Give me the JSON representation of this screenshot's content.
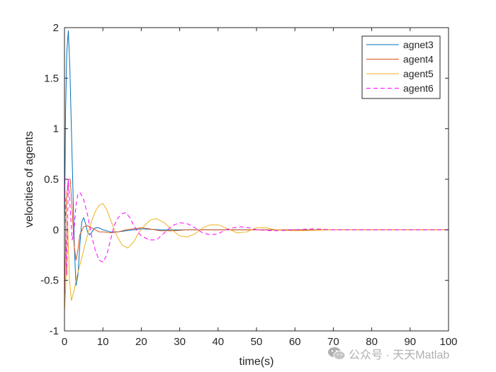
{
  "chart_data": {
    "type": "line",
    "title": "",
    "xlabel": "time(s)",
    "ylabel": "velocities of agents",
    "xlim": [
      0,
      100
    ],
    "ylim": [
      -1,
      2
    ],
    "xticks": [
      0,
      10,
      20,
      30,
      40,
      50,
      60,
      70,
      80,
      90,
      100
    ],
    "yticks": [
      -1,
      -0.5,
      0,
      0.5,
      1,
      1.5,
      2
    ],
    "xtick_labels": [
      "0",
      "10",
      "20",
      "30",
      "40",
      "50",
      "60",
      "70",
      "80",
      "90",
      "100"
    ],
    "ytick_labels": [
      "-1",
      "-0.5",
      "0",
      "0.5",
      "1",
      "1.5",
      "2"
    ],
    "grid": false,
    "legend_position": "top-right",
    "series": [
      {
        "name": "agnet3",
        "color": "#0072BD",
        "dash": "solid",
        "x": [
          0,
          0.3,
          0.6,
          1.0,
          1.4,
          2.0,
          2.6,
          3.0,
          3.5,
          4.0,
          4.5,
          5.0,
          5.5,
          6.0,
          6.5,
          7.0,
          7.5,
          8.0,
          9.0,
          10.0,
          12.0,
          14.0,
          16.0,
          18.0,
          20.0,
          25.0,
          30.0,
          40.0,
          60.0,
          100.0
        ],
        "y": [
          0,
          1.2,
          1.75,
          1.97,
          1.6,
          0.7,
          -0.2,
          -0.55,
          -0.45,
          -0.15,
          0.08,
          0.12,
          0.06,
          -0.02,
          -0.05,
          -0.03,
          0.0,
          0.02,
          0.02,
          0.0,
          -0.02,
          -0.02,
          -0.01,
          0.0,
          0.01,
          0.0,
          0.0,
          0.0,
          0.0,
          0.0
        ]
      },
      {
        "name": "agent4",
        "color": "#D95319",
        "dash": "solid",
        "x": [
          0,
          0.2,
          0.5,
          1.0,
          1.5,
          2.0,
          2.5,
          3.0,
          3.5,
          4.0,
          5.0,
          6.0,
          7.0,
          8.0,
          9.0,
          10.0,
          12.0,
          14.0,
          16.0,
          18.0,
          20.0,
          22.0,
          25.0,
          28.0,
          32.0,
          40.0,
          50.0,
          70.0,
          100.0
        ],
        "y": [
          -0.8,
          -0.3,
          0.3,
          0.5,
          0.5,
          0.2,
          -0.15,
          -0.3,
          -0.2,
          -0.05,
          0.03,
          0.04,
          0.02,
          0.0,
          -0.02,
          -0.02,
          -0.03,
          -0.02,
          0.0,
          0.01,
          0.02,
          0.01,
          -0.01,
          -0.01,
          0.0,
          0.0,
          0.0,
          0.0,
          0.0
        ]
      },
      {
        "name": "agent5",
        "color": "#EDB120",
        "dash": "solid",
        "x": [
          0,
          0.3,
          0.8,
          1.3,
          1.8,
          2.5,
          3.3,
          4.0,
          5.0,
          6.0,
          7.0,
          8.0,
          9.0,
          10.0,
          11.0,
          12.0,
          13.5,
          15.0,
          16.5,
          18.0,
          19.5,
          21.0,
          22.5,
          24.0,
          26.0,
          28.0,
          30.0,
          32.0,
          34.0,
          36.0,
          38.0,
          40.0,
          42.5,
          45.0,
          47.5,
          50.0,
          52.5,
          55.0,
          60.0,
          70.0,
          80.0,
          100.0
        ],
        "y": [
          -0.8,
          -0.6,
          0.1,
          -0.5,
          -0.7,
          -0.6,
          -0.45,
          -0.35,
          -0.2,
          -0.05,
          0.08,
          0.18,
          0.24,
          0.26,
          0.2,
          0.1,
          -0.05,
          -0.15,
          -0.18,
          -0.12,
          -0.02,
          0.05,
          0.1,
          0.11,
          0.07,
          0.0,
          -0.06,
          -0.07,
          -0.04,
          0.02,
          0.05,
          0.05,
          0.01,
          -0.03,
          -0.02,
          0.02,
          0.02,
          0.0,
          -0.01,
          0.0,
          0.0,
          0.0
        ]
      },
      {
        "name": "agent6",
        "color": "#FF00FF",
        "dash": "dashed",
        "x": [
          0,
          0.3,
          0.6,
          1.0,
          1.5,
          2.0,
          2.5,
          3.0,
          3.5,
          4.0,
          5.0,
          6.0,
          7.0,
          8.0,
          9.0,
          10.0,
          11.0,
          12.0,
          13.0,
          14.0,
          15.0,
          16.0,
          17.0,
          18.0,
          19.0,
          20.0,
          22.0,
          24.0,
          26.0,
          28.0,
          30.0,
          32.0,
          34.0,
          36.0,
          38.0,
          40.0,
          42.0,
          44.0,
          46.0,
          48.0,
          50.0,
          55.0,
          60.0,
          65.0,
          70.0,
          80.0,
          100.0
        ],
        "y": [
          0.6,
          0.1,
          -0.45,
          0.5,
          0.2,
          -0.1,
          0.0,
          0.25,
          0.35,
          0.37,
          0.3,
          0.15,
          -0.05,
          -0.2,
          -0.3,
          -0.32,
          -0.25,
          -0.1,
          0.05,
          0.12,
          0.16,
          0.17,
          0.12,
          0.05,
          -0.02,
          -0.06,
          -0.1,
          -0.1,
          -0.03,
          0.04,
          0.07,
          0.06,
          0.02,
          -0.03,
          -0.05,
          -0.04,
          0.0,
          0.02,
          0.03,
          0.02,
          0.0,
          -0.01,
          0.0,
          0.01,
          0.0,
          0.0,
          0.0
        ]
      }
    ]
  },
  "watermark": {
    "text": "公众号 · 天天Matlab",
    "icon": "wechat-icon"
  }
}
